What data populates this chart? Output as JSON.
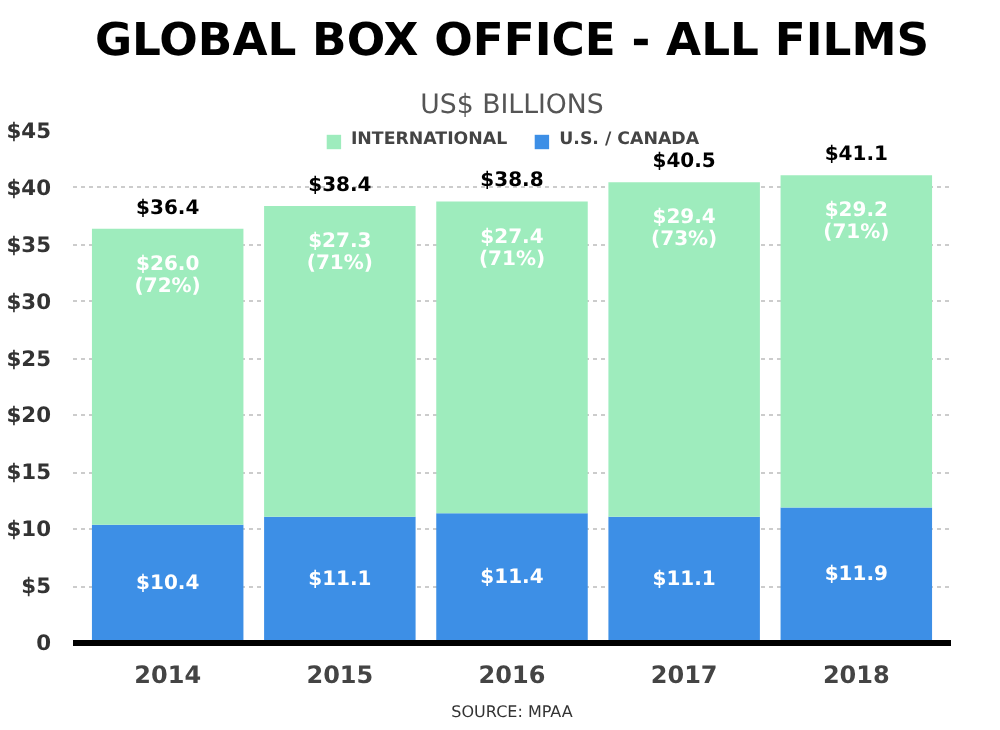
{
  "chart_data": {
    "type": "bar",
    "title": "GLOBAL BOX OFFICE - ALL FILMS",
    "subtitle": "US$ BILLIONS",
    "categories": [
      "2014",
      "2015",
      "2016",
      "2017",
      "2018"
    ],
    "stacked": true,
    "series": [
      {
        "name": "U.S. / CANADA",
        "color": "#3d8fe6",
        "values": [
          10.4,
          11.1,
          11.4,
          11.1,
          11.9
        ],
        "value_labels": [
          "$10.4",
          "$11.1",
          "$11.4",
          "$11.1",
          "$11.9"
        ]
      },
      {
        "name": "INTERNATIONAL",
        "color": "#9eecbd",
        "values": [
          26.0,
          27.3,
          27.4,
          29.4,
          29.2
        ],
        "value_labels": [
          "$26.0\n(72%)",
          "$27.3\n(71%)",
          "$27.4\n(71%)",
          "$29.4\n(73%)",
          "$29.2\n(71%)"
        ]
      }
    ],
    "totals": [
      "$36.4",
      "$38.4",
      "$38.8",
      "$40.5",
      "$41.1"
    ],
    "ylim": [
      0,
      45
    ],
    "yticks": [
      {
        "value": 0,
        "label": "0"
      },
      {
        "value": 5,
        "label": "$5"
      },
      {
        "value": 10,
        "label": "$10"
      },
      {
        "value": 15,
        "label": "$15"
      },
      {
        "value": 20,
        "label": "$20"
      },
      {
        "value": 25,
        "label": "$25"
      },
      {
        "value": 30,
        "label": "$30"
      },
      {
        "value": 35,
        "label": "$35"
      },
      {
        "value": 40,
        "label": "$40"
      },
      {
        "value": 45,
        "label": "$45"
      }
    ],
    "grid": "y",
    "legend": "top",
    "annotations": [
      "SOURCE: MPAA"
    ]
  }
}
